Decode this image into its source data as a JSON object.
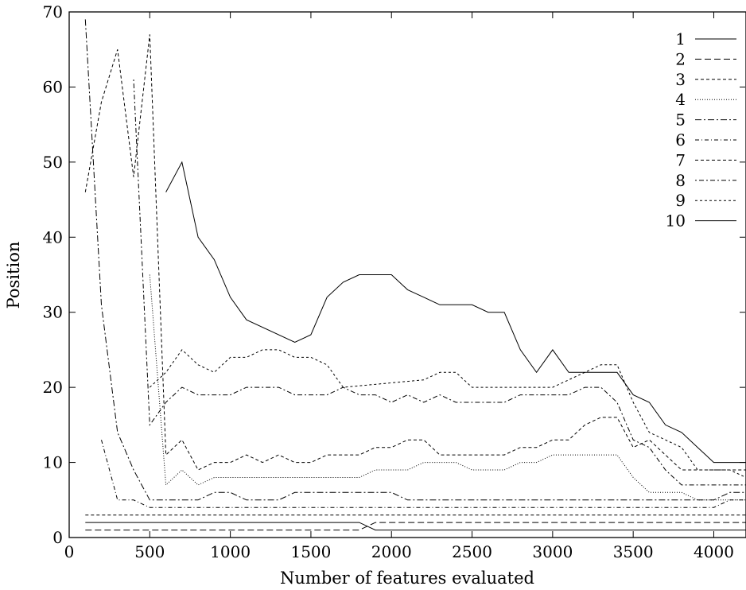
{
  "chart_data": {
    "type": "line",
    "title": "",
    "xlabel": "Number of features evaluated",
    "ylabel": "Position",
    "xlim": [
      0,
      4200
    ],
    "ylim": [
      0,
      70
    ],
    "xticks": [
      "0",
      "500",
      "1000",
      "1500",
      "2000",
      "2500",
      "3000",
      "3500",
      "4000"
    ],
    "yticks": [
      "0",
      "10",
      "20",
      "30",
      "40",
      "50",
      "60",
      "70"
    ],
    "grid": false,
    "legend_position": "top-right",
    "series": [
      {
        "name": "1",
        "dash": "",
        "points": [
          [
            100,
            2
          ],
          [
            1800,
            2
          ],
          [
            1900,
            1
          ],
          [
            4200,
            1
          ]
        ]
      },
      {
        "name": "2",
        "dash": "8,4",
        "points": [
          [
            100,
            1
          ],
          [
            1800,
            1
          ],
          [
            1900,
            2
          ],
          [
            4200,
            2
          ]
        ]
      },
      {
        "name": "3",
        "dash": "4,3",
        "points": [
          [
            100,
            3
          ],
          [
            4200,
            3
          ]
        ]
      },
      {
        "name": "4",
        "dash": "1,2",
        "points": [
          [
            500,
            35
          ],
          [
            600,
            7
          ],
          [
            700,
            9
          ],
          [
            800,
            7
          ],
          [
            900,
            8
          ],
          [
            1000,
            8
          ],
          [
            1800,
            8
          ],
          [
            1900,
            9
          ],
          [
            2100,
            9
          ],
          [
            2200,
            10
          ],
          [
            2400,
            10
          ],
          [
            2500,
            9
          ],
          [
            2700,
            9
          ],
          [
            2800,
            10
          ],
          [
            2900,
            10
          ],
          [
            3000,
            11
          ],
          [
            3400,
            11
          ],
          [
            3500,
            8
          ],
          [
            3600,
            6
          ],
          [
            3800,
            6
          ],
          [
            3900,
            5
          ],
          [
            4200,
            5
          ]
        ]
      },
      {
        "name": "5",
        "dash": "8,3,2,3",
        "points": [
          [
            100,
            69
          ],
          [
            200,
            31
          ],
          [
            300,
            14
          ],
          [
            400,
            9
          ],
          [
            500,
            5
          ],
          [
            800,
            5
          ],
          [
            900,
            6
          ],
          [
            1000,
            6
          ],
          [
            1100,
            5
          ],
          [
            1300,
            5
          ],
          [
            1400,
            6
          ],
          [
            1500,
            6
          ],
          [
            1800,
            6
          ],
          [
            2000,
            6
          ],
          [
            2100,
            5
          ],
          [
            4000,
            5
          ],
          [
            4100,
            6
          ],
          [
            4200,
            6
          ]
        ]
      },
      {
        "name": "6",
        "dash": "5,3,1,3",
        "points": [
          [
            200,
            13
          ],
          [
            300,
            5
          ],
          [
            400,
            5
          ],
          [
            500,
            4
          ],
          [
            4000,
            4
          ],
          [
            4100,
            5
          ],
          [
            4200,
            5
          ]
        ]
      },
      {
        "name": "7",
        "dash": "4,3",
        "points": [
          [
            100,
            46
          ],
          [
            200,
            58
          ],
          [
            300,
            65
          ],
          [
            400,
            48
          ],
          [
            500,
            67
          ],
          [
            600,
            11
          ],
          [
            700,
            13
          ],
          [
            800,
            9
          ],
          [
            900,
            10
          ],
          [
            1000,
            10
          ],
          [
            1100,
            11
          ],
          [
            1200,
            10
          ],
          [
            1300,
            11
          ],
          [
            1400,
            10
          ],
          [
            1500,
            10
          ],
          [
            1600,
            11
          ],
          [
            1800,
            11
          ],
          [
            1900,
            12
          ],
          [
            2000,
            12
          ],
          [
            2100,
            13
          ],
          [
            2200,
            13
          ],
          [
            2300,
            11
          ],
          [
            2700,
            11
          ],
          [
            2800,
            12
          ],
          [
            2900,
            12
          ],
          [
            3000,
            13
          ],
          [
            3100,
            13
          ],
          [
            3200,
            15
          ],
          [
            3300,
            16
          ],
          [
            3400,
            16
          ],
          [
            3500,
            12
          ],
          [
            3600,
            13
          ],
          [
            3700,
            11
          ],
          [
            3800,
            9
          ],
          [
            4200,
            9
          ]
        ]
      },
      {
        "name": "8",
        "dash": "2,3,6,3",
        "points": [
          [
            400,
            61
          ],
          [
            500,
            15
          ],
          [
            600,
            18
          ],
          [
            700,
            20
          ],
          [
            800,
            19
          ],
          [
            1000,
            19
          ],
          [
            1100,
            20
          ],
          [
            1300,
            20
          ],
          [
            1400,
            19
          ],
          [
            1600,
            19
          ],
          [
            1700,
            20
          ],
          [
            1800,
            19
          ],
          [
            1900,
            19
          ],
          [
            2000,
            18
          ],
          [
            2100,
            19
          ],
          [
            2200,
            18
          ],
          [
            2300,
            19
          ],
          [
            2400,
            18
          ],
          [
            2700,
            18
          ],
          [
            2800,
            19
          ],
          [
            3000,
            19
          ],
          [
            3100,
            19
          ],
          [
            3200,
            20
          ],
          [
            3300,
            20
          ],
          [
            3400,
            18
          ],
          [
            3500,
            13
          ],
          [
            3600,
            12
          ],
          [
            3700,
            9
          ],
          [
            3800,
            7
          ],
          [
            4200,
            7
          ]
        ]
      },
      {
        "name": "9",
        "dash": "3,3",
        "points": [
          [
            500,
            20
          ],
          [
            600,
            22
          ],
          [
            700,
            25
          ],
          [
            800,
            23
          ],
          [
            900,
            22
          ],
          [
            1000,
            24
          ],
          [
            1100,
            24
          ],
          [
            1200,
            25
          ],
          [
            1300,
            25
          ],
          [
            1400,
            24
          ],
          [
            1500,
            24
          ],
          [
            1600,
            23
          ],
          [
            1700,
            20
          ],
          [
            2200,
            21
          ],
          [
            2300,
            22
          ],
          [
            2400,
            22
          ],
          [
            2500,
            20
          ],
          [
            3000,
            20
          ],
          [
            3100,
            21
          ],
          [
            3200,
            22
          ],
          [
            3300,
            23
          ],
          [
            3400,
            23
          ],
          [
            3500,
            18
          ],
          [
            3600,
            14
          ],
          [
            3700,
            13
          ],
          [
            3800,
            12
          ],
          [
            3900,
            9
          ],
          [
            4100,
            9
          ],
          [
            4200,
            8
          ]
        ]
      },
      {
        "name": "10",
        "dash": "",
        "points": [
          [
            600,
            46
          ],
          [
            700,
            50
          ],
          [
            800,
            40
          ],
          [
            900,
            37
          ],
          [
            1000,
            32
          ],
          [
            1100,
            29
          ],
          [
            1400,
            26
          ],
          [
            1500,
            27
          ],
          [
            1600,
            32
          ],
          [
            1700,
            34
          ],
          [
            1800,
            35
          ],
          [
            2000,
            35
          ],
          [
            2100,
            33
          ],
          [
            2200,
            32
          ],
          [
            2300,
            31
          ],
          [
            2500,
            31
          ],
          [
            2600,
            30
          ],
          [
            2700,
            30
          ],
          [
            2800,
            25
          ],
          [
            2900,
            22
          ],
          [
            3000,
            25
          ],
          [
            3100,
            22
          ],
          [
            3400,
            22
          ],
          [
            3500,
            19
          ],
          [
            3600,
            18
          ],
          [
            3700,
            15
          ],
          [
            3800,
            14
          ],
          [
            3900,
            12
          ],
          [
            4000,
            10
          ],
          [
            4200,
            10
          ]
        ]
      }
    ]
  }
}
